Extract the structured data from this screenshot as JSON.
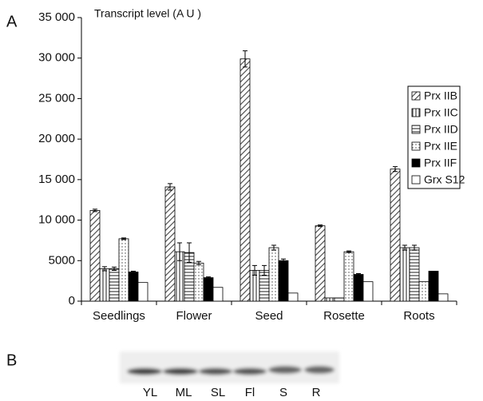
{
  "panel_label_a": "A",
  "chart_data": {
    "type": "bar",
    "y_label": "Transcript level (A U )",
    "categories": [
      "Seedlings",
      "Flower",
      "Seed",
      "Rosette",
      "Roots"
    ],
    "series": [
      {
        "name": "Prx IIB",
        "color": "#444444",
        "pattern": "diagonal",
        "values": [
          11200,
          14100,
          29900,
          9300,
          16300
        ],
        "errors": [
          150,
          400,
          1000,
          100,
          300
        ]
      },
      {
        "name": "Prx IIC",
        "color": "#444444",
        "pattern": "vertical",
        "values": [
          4000,
          6100,
          3800,
          400,
          6600
        ],
        "errors": [
          250,
          1100,
          600,
          null,
          300
        ]
      },
      {
        "name": "Prx IID",
        "color": "#444444",
        "pattern": "horizontal",
        "values": [
          4000,
          6000,
          3800,
          400,
          6600
        ],
        "errors": [
          200,
          1200,
          600,
          null,
          300
        ]
      },
      {
        "name": "Prx IIE",
        "color": "#444444",
        "pattern": "dots",
        "values": [
          7700,
          4700,
          6600,
          6100,
          2400
        ],
        "errors": [
          100,
          200,
          300,
          100,
          null
        ]
      },
      {
        "name": "Prx IIF",
        "color": "#000000",
        "pattern": "solid",
        "values": [
          3600,
          2900,
          5000,
          3300,
          3700
        ],
        "errors": [
          100,
          100,
          200,
          100,
          null
        ]
      },
      {
        "name": "Grx S12",
        "color": "#ffffff",
        "pattern": "solid",
        "values": [
          2300,
          1700,
          1000,
          2400,
          900
        ],
        "errors": [
          null,
          null,
          null,
          null,
          null
        ]
      }
    ],
    "ylim": [
      0,
      35000
    ],
    "yticks": [
      0,
      5000,
      {
        "value": 10000,
        "label": "10 000"
      },
      {
        "value": 15000,
        "label": "15 000"
      },
      {
        "value": 20000,
        "label": "20 000"
      },
      {
        "value": 25000,
        "label": "25 000"
      },
      {
        "value": 30000,
        "label": "30 000"
      },
      {
        "value": 35000,
        "label": "35 000"
      }
    ],
    "legend": "right"
  },
  "panel_b": {
    "label": "B",
    "lanes": [
      "YL",
      "ML",
      "SL",
      "Fl",
      "S",
      "R"
    ]
  }
}
